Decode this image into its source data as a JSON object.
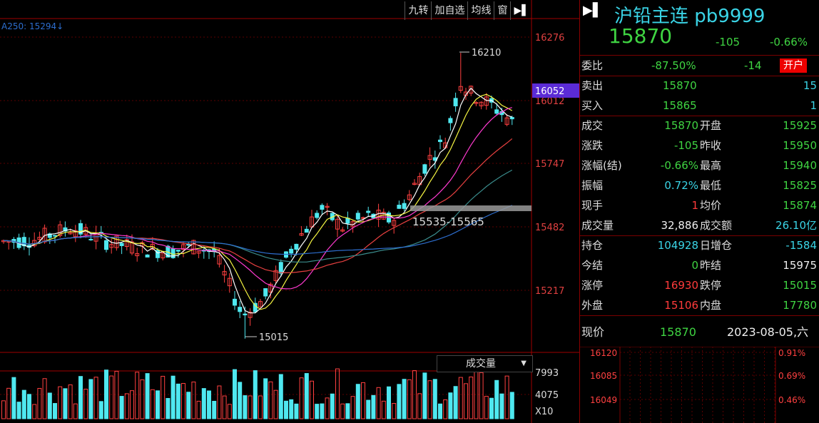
{
  "toolbar": {
    "items": [
      "九转",
      "加自选",
      "均线",
      "窗"
    ],
    "arrow": "▶▌"
  },
  "ma_label": "A250: 15294↓",
  "chart_data": {
    "type": "candlestick",
    "price_axis": {
      "ticks": [
        "16276",
        "16012",
        "15747",
        "15482",
        "15217"
      ],
      "current": "16052"
    },
    "annotations": {
      "high": "16210",
      "low": "15015",
      "range": "15535-15565"
    },
    "volume_selector": "成交量",
    "volume_axis": {
      "ticks": [
        "7993",
        "4075"
      ],
      "unit": "X10"
    }
  },
  "quote": {
    "title": "沪铅主连 pb9999",
    "price": "15870",
    "change": "-105",
    "change_pct": "-0.66%",
    "webi": {
      "label": "委比",
      "pct": "-87.50%",
      "diff": "-14",
      "badge": "开户"
    },
    "sell": {
      "label": "卖出",
      "price": "15870",
      "qty": "15"
    },
    "buy": {
      "label": "买入",
      "price": "15865",
      "qty": "1"
    },
    "rows": [
      {
        "l1": "成交",
        "v1": "15870",
        "c1": "g",
        "l2": "开盘",
        "v2": "15925",
        "c2": "g"
      },
      {
        "l1": "涨跌",
        "v1": "-105",
        "c1": "g",
        "l2": "昨收",
        "v2": "15950",
        "c2": "g"
      },
      {
        "l1": "涨幅(结)",
        "v1": "-0.66%",
        "c1": "g",
        "l2": "最高",
        "v2": "15940",
        "c2": "g"
      },
      {
        "l1": "振幅",
        "v1": "0.72%",
        "c1": "c",
        "l2": "最低",
        "v2": "15825",
        "c2": "g"
      },
      {
        "l1": "现手",
        "v1": "1",
        "c1": "r",
        "l2": "均价",
        "v2": "15874",
        "c2": "g"
      },
      {
        "l1": "成交量",
        "v1": "32,886",
        "c1": "w",
        "l2": "成交额",
        "v2": "26.10亿",
        "c2": "c"
      }
    ],
    "rows2": [
      {
        "l1": "持仓",
        "v1": "104928",
        "c1": "c",
        "l2": "日增仓",
        "v2": "-1584",
        "c2": "c"
      },
      {
        "l1": "今结",
        "v1": "0",
        "c1": "g",
        "l2": "昨结",
        "v2": "15975",
        "c2": "w"
      },
      {
        "l1": "涨停",
        "v1": "16930",
        "c1": "r",
        "l2": "跌停",
        "v2": "15015",
        "c2": "g"
      },
      {
        "l1": "外盘",
        "v1": "15106",
        "c1": "r",
        "l2": "内盘",
        "v2": "17780",
        "c2": "g"
      }
    ],
    "now": {
      "label": "现价",
      "price": "15870",
      "datetime": "2023-08-05,六"
    },
    "mini": {
      "prices": [
        "16120",
        "16085",
        "16049"
      ],
      "pcts": [
        "0.91%",
        "0.69%",
        "0.46%"
      ]
    }
  }
}
